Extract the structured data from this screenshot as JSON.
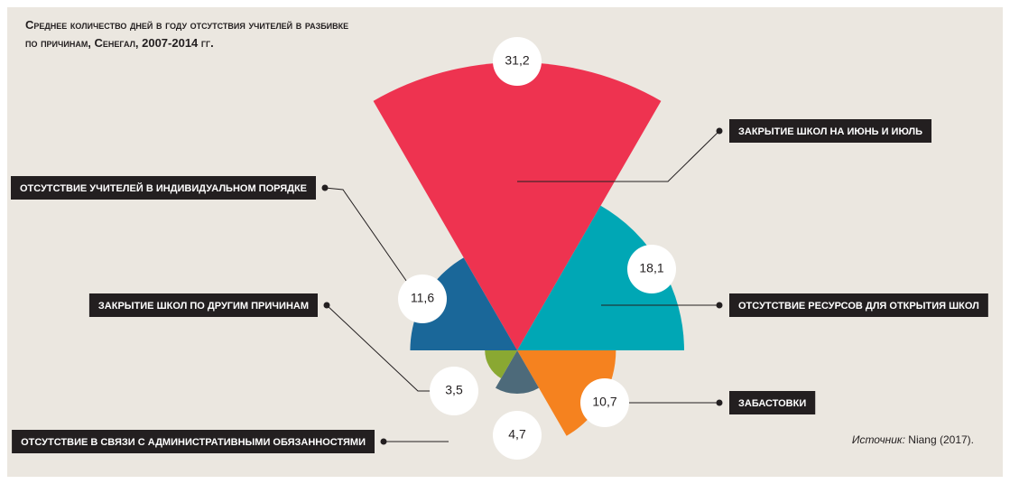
{
  "chart_data": {
    "type": "polar_area",
    "title": "Среднее количество дней в году отсутствия учителей в разбивке по причинам, Сенегал, 2007-2014 гг.",
    "categories": [
      "Закрытие школ на июнь и июль",
      "Отсутствие ресурсов для открытия школ",
      "Забастовки",
      "Отсутствие в связи с административными обязанностями",
      "Закрытие школ по другим причинам",
      "Отсутствие учителей в индивидуальном порядке"
    ],
    "values": [
      31.2,
      18.1,
      10.7,
      4.7,
      3.5,
      11.6
    ],
    "value_labels": [
      "31,2",
      "18,1",
      "10,7",
      "4,7",
      "3,5",
      "11,6"
    ],
    "colors": [
      "#ee3350",
      "#00a7b5",
      "#f5821f",
      "#4d6a7a",
      "#8aa832",
      "#1a6799"
    ],
    "source_label": "Источник:",
    "source_text": "Niang (2017)."
  }
}
